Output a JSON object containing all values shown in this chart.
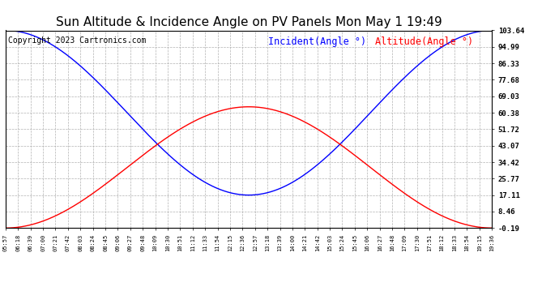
{
  "title": "Sun Altitude & Incidence Angle on PV Panels Mon May 1 19:49",
  "copyright": "Copyright 2023 Cartronics.com",
  "legend_incident": "Incident(Angle °)",
  "legend_altitude": "Altitude(Angle °)",
  "yticks": [
    103.64,
    94.99,
    86.33,
    77.68,
    69.03,
    60.38,
    51.72,
    43.07,
    34.42,
    25.77,
    17.11,
    8.46,
    -0.19
  ],
  "x_labels": [
    "05:57",
    "06:18",
    "06:39",
    "07:00",
    "07:21",
    "07:42",
    "08:03",
    "08:24",
    "08:45",
    "09:06",
    "09:27",
    "09:48",
    "10:09",
    "10:30",
    "10:51",
    "11:12",
    "11:33",
    "11:54",
    "12:15",
    "12:36",
    "12:57",
    "13:18",
    "13:39",
    "14:00",
    "14:21",
    "14:42",
    "15:03",
    "15:24",
    "15:45",
    "16:06",
    "16:27",
    "16:48",
    "17:09",
    "17:30",
    "17:51",
    "18:12",
    "18:33",
    "18:54",
    "19:15",
    "19:36"
  ],
  "ymin": -0.19,
  "ymax": 103.64,
  "blue_min": 17.11,
  "blue_max": 103.64,
  "red_min": -0.19,
  "red_max": 63.5,
  "incident_color": "#0000ff",
  "altitude_color": "#ff0000",
  "background_color": "#ffffff",
  "grid_color": "#aaaaaa",
  "title_color": "#000000",
  "title_fontsize": 11,
  "copyright_fontsize": 7,
  "legend_fontsize": 8.5
}
